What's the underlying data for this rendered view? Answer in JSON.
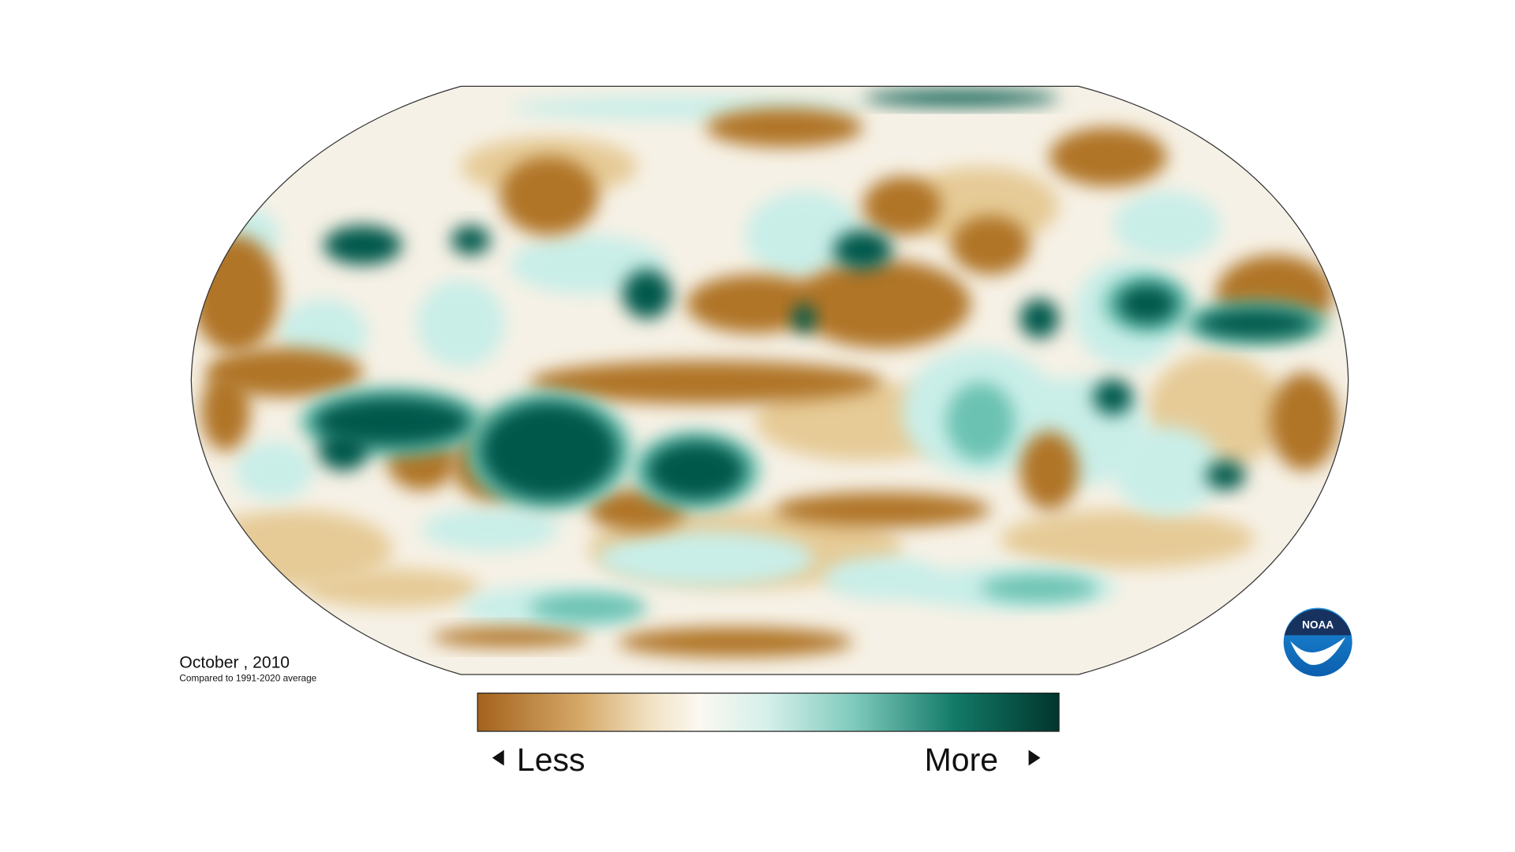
{
  "map": {
    "title": "October , 2010",
    "subtitle": "Compared to 1991-2020 average",
    "legend": {
      "low_label": "Less",
      "high_label": "More"
    },
    "logo": "NOAA"
  }
}
